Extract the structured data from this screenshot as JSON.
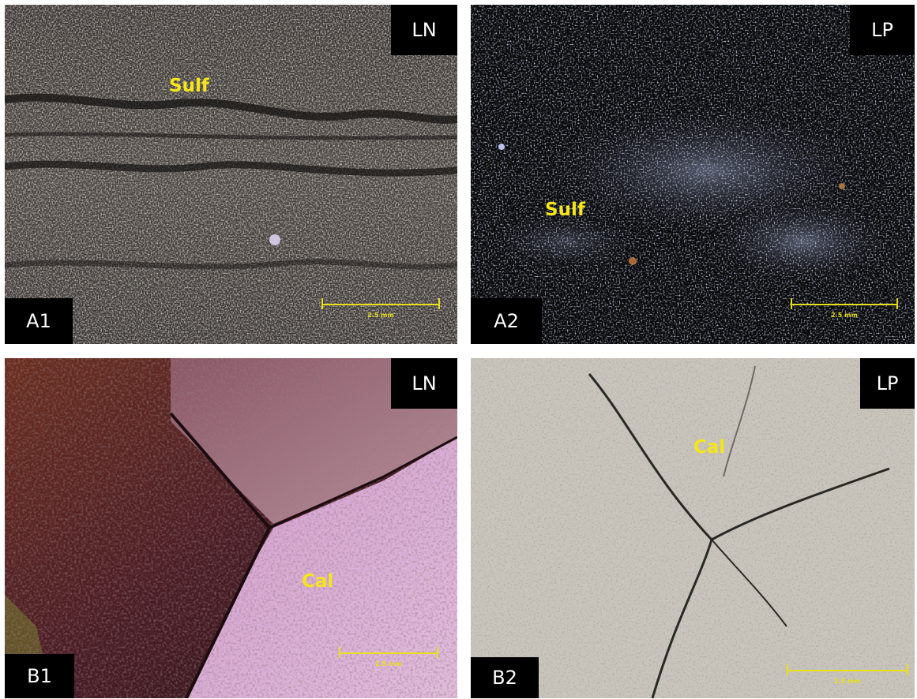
{
  "panels": {
    "a1": {
      "id_label": "A1",
      "light_label": "LN",
      "mineral": "Sulf",
      "scale": "2.5 mm"
    },
    "a2": {
      "id_label": "A2",
      "light_label": "LP",
      "mineral": "Sulf",
      "scale": "2.5 mm"
    },
    "b1": {
      "id_label": "B1",
      "light_label": "LN",
      "mineral": "Cal",
      "scale": "2.5 mm"
    },
    "b2": {
      "id_label": "B2",
      "light_label": "LP",
      "mineral": "Cal",
      "scale": "2.5 mm"
    }
  },
  "colors": {
    "label_yellow": "#f5e61a",
    "scale_yellow": "#e8e01c",
    "tag_bg": "#000000"
  }
}
